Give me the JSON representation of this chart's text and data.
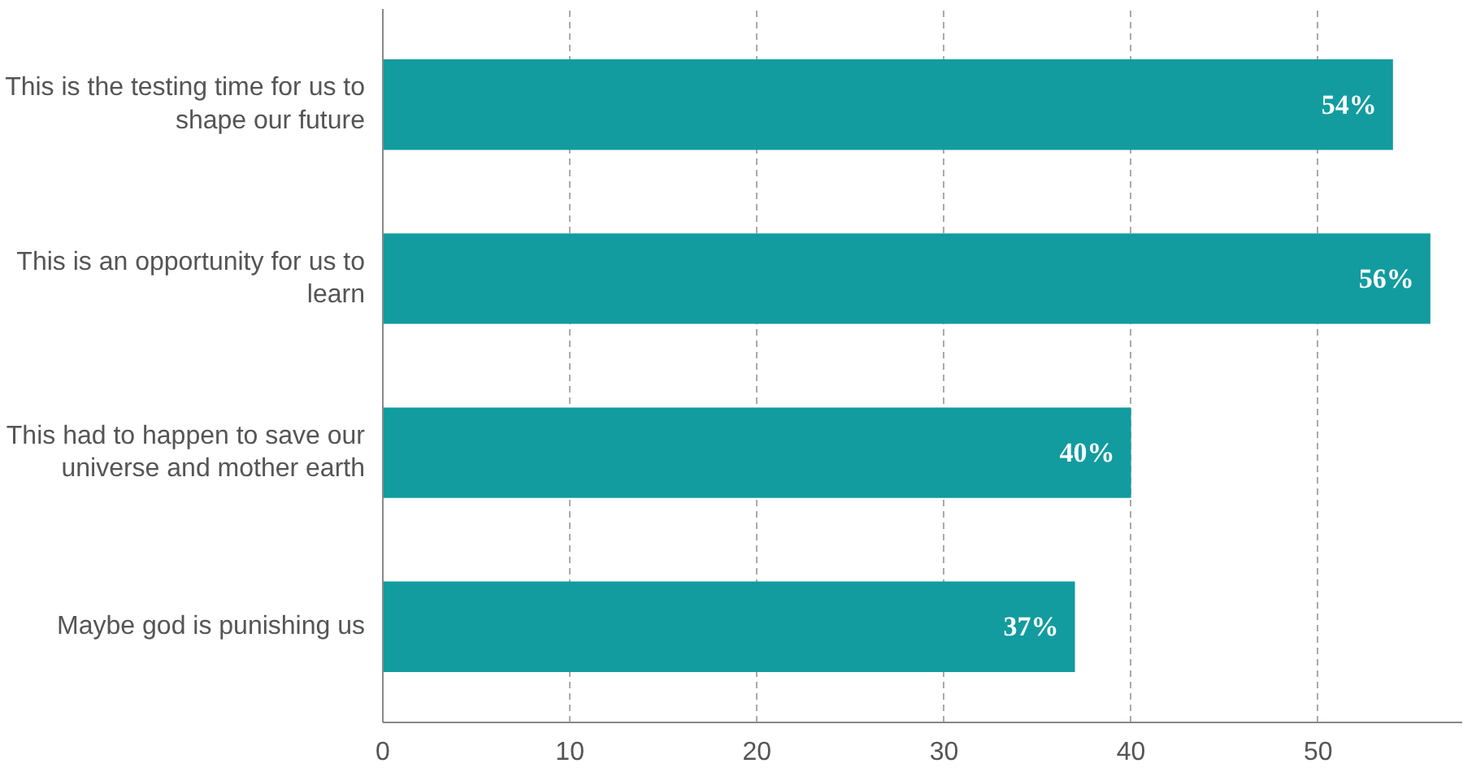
{
  "chart_data": {
    "type": "bar",
    "orientation": "horizontal",
    "categories": [
      "This is the testing time for us to shape our future",
      "This is an opportunity for us to learn",
      "This had to happen to save our universe and mother earth",
      "Maybe god is punishing us"
    ],
    "values": [
      54,
      56,
      40,
      37
    ],
    "value_labels": [
      "54%",
      "56%",
      "40%",
      "37%"
    ],
    "color": "#129c9f",
    "xlim": [
      0,
      57.7
    ],
    "xticks": [
      0,
      10,
      20,
      30,
      40,
      50
    ],
    "grid": "x"
  }
}
